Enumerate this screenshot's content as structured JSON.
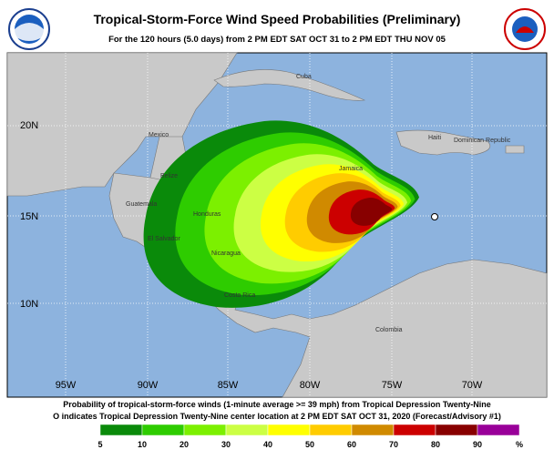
{
  "header": {
    "title": "Tropical-Storm-Force Wind Speed Probabilities (Preliminary)",
    "subtitle": "For the 120 hours (5.0 days) from 2 PM EDT SAT OCT 31 to 2 PM EDT THU NOV 05"
  },
  "map": {
    "latitudes": [
      "20N",
      "15N",
      "10N"
    ],
    "longitudes": [
      "95W",
      "90W",
      "85W",
      "80W",
      "75W",
      "70W"
    ],
    "places": [
      "Cuba",
      "Mexico",
      "Haiti",
      "Dominican Republic",
      "Jamaica",
      "Belize",
      "Guatemala",
      "Honduras",
      "El Salvador",
      "Nicaragua",
      "Costa Rica",
      "Colombia"
    ]
  },
  "footer": {
    "line1": "Probability of tropical-storm-force winds (1-minute average >= 39 mph) from Tropical Depression Twenty-Nine",
    "line2": "O indicates Tropical Depression Twenty-Nine center location at 2 PM EDT SAT OCT 31, 2020 (Forecast/Advisory #1)"
  },
  "legend": {
    "ticks": [
      5,
      10,
      20,
      30,
      40,
      50,
      60,
      70,
      80,
      90
    ],
    "unit": "%",
    "colors": [
      "#0a8a0a",
      "#2ecc00",
      "#7cf000",
      "#ccff44",
      "#ffff00",
      "#ffcc00",
      "#d08a00",
      "#cc0000",
      "#880000",
      "#990099"
    ]
  }
}
